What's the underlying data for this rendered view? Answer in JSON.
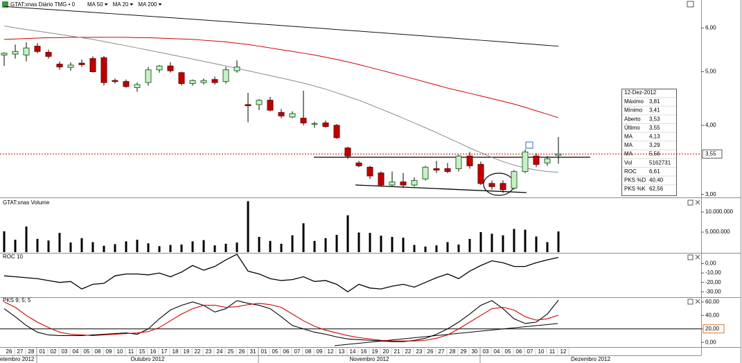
{
  "chart_data": [
    {
      "type": "candlestick",
      "title": "GTAT:xnas Diário TMG • 0",
      "log": true,
      "categories": [
        "26",
        "27",
        "28",
        "01",
        "02",
        "03",
        "04",
        "05",
        "08",
        "09",
        "10",
        "11",
        "15",
        "16",
        "17",
        "18",
        "19",
        "22",
        "23",
        "24",
        "25",
        "26",
        "31",
        "01",
        "05",
        "06",
        "07",
        "08",
        "09",
        "12",
        "13",
        "14",
        "16",
        "19",
        "20",
        "21",
        "22",
        "23",
        "26",
        "27",
        "28",
        "29",
        "30",
        "03",
        "04",
        "05",
        "06",
        "07",
        "10",
        "11",
        "12"
      ],
      "months": [
        "etembro 2012",
        "Outubro 2012",
        "Novembro 2012",
        "Dezembro 2012"
      ],
      "open": [
        5.36,
        5.38,
        5.36,
        5.56,
        5.42,
        5.16,
        5.09,
        5.18,
        5.28,
        5.3,
        4.82,
        4.8,
        4.68,
        4.78,
        5.04,
        5.12,
        4.98,
        4.76,
        4.78,
        4.84,
        4.8,
        5.02,
        4.36,
        4.36,
        4.44,
        4.22,
        4.14,
        4.12,
        4.02,
        4.04,
        4.0,
        3.64,
        3.42,
        3.36,
        3.28,
        3.12,
        3.16,
        3.12,
        3.2,
        3.34,
        3.34,
        3.34,
        3.52,
        3.4,
        3.14,
        3.14,
        3.08,
        3.3,
        3.52,
        3.42,
        3.53
      ],
      "high": [
        5.42,
        5.6,
        5.65,
        5.63,
        5.48,
        5.22,
        5.2,
        5.26,
        5.33,
        5.34,
        4.86,
        4.84,
        4.78,
        5.1,
        5.14,
        5.2,
        5.0,
        4.84,
        4.86,
        4.9,
        5.1,
        5.24,
        4.58,
        4.46,
        4.5,
        4.28,
        4.24,
        4.62,
        4.06,
        4.08,
        4.02,
        3.66,
        3.45,
        3.38,
        3.3,
        3.3,
        3.28,
        3.22,
        3.38,
        3.45,
        3.42,
        3.54,
        3.58,
        3.44,
        3.18,
        3.18,
        3.32,
        3.62,
        3.56,
        3.52,
        3.81
      ],
      "low": [
        5.12,
        5.28,
        5.22,
        5.4,
        5.28,
        5.04,
        5.02,
        5.1,
        4.98,
        4.72,
        4.76,
        4.68,
        4.6,
        4.72,
        4.98,
        4.98,
        4.72,
        4.72,
        4.74,
        4.74,
        4.76,
        4.98,
        4.05,
        4.26,
        4.24,
        4.12,
        4.12,
        4.0,
        3.96,
        3.96,
        3.78,
        3.48,
        3.36,
        3.2,
        3.1,
        3.1,
        3.08,
        3.1,
        3.18,
        3.28,
        3.28,
        3.3,
        3.34,
        3.12,
        3.06,
        3.02,
        3.06,
        3.28,
        3.36,
        3.38,
        3.41
      ],
      "close": [
        5.4,
        5.44,
        5.52,
        5.44,
        5.33,
        5.1,
        5.14,
        5.15,
        5.0,
        4.78,
        4.8,
        4.7,
        4.74,
        5.04,
        5.12,
        5.02,
        4.76,
        4.82,
        4.82,
        4.78,
        5.04,
        5.1,
        4.34,
        4.44,
        4.26,
        4.16,
        4.2,
        4.04,
        4.03,
        3.98,
        3.8,
        3.52,
        3.38,
        3.24,
        3.12,
        3.16,
        3.12,
        3.18,
        3.36,
        3.32,
        3.3,
        3.52,
        3.38,
        3.14,
        3.1,
        3.06,
        3.3,
        3.58,
        3.4,
        3.48,
        3.55
      ],
      "up_color": "#c8f0c8",
      "down_color": "#c00000",
      "series": [
        {
          "name": "MA 50",
          "color": "#cc0000",
          "values": [
            5.72,
            5.73,
            5.74,
            5.75,
            5.76,
            5.76,
            5.77,
            5.77,
            5.77,
            5.77,
            5.77,
            5.77,
            5.76,
            5.76,
            5.75,
            5.74,
            5.73,
            5.72,
            5.7,
            5.68,
            5.66,
            5.63,
            5.6,
            5.56,
            5.52,
            5.48,
            5.44,
            5.4,
            5.36,
            5.31,
            5.26,
            5.21,
            5.15,
            5.09,
            5.03,
            4.97,
            4.91,
            4.85,
            4.79,
            4.73,
            4.67,
            4.62,
            4.57,
            4.52,
            4.47,
            4.42,
            4.37,
            4.31,
            4.25,
            4.19,
            4.13
          ]
        },
        {
          "name": "MA 20",
          "color": "#8a8a8a",
          "values": [
            6.05,
            6.0,
            5.96,
            5.92,
            5.88,
            5.84,
            5.8,
            5.76,
            5.72,
            5.67,
            5.62,
            5.57,
            5.52,
            5.47,
            5.42,
            5.37,
            5.32,
            5.27,
            5.22,
            5.17,
            5.12,
            5.07,
            5.02,
            4.97,
            4.92,
            4.87,
            4.82,
            4.77,
            4.71,
            4.65,
            4.58,
            4.51,
            4.44,
            4.36,
            4.28,
            4.2,
            4.12,
            4.04,
            3.96,
            3.88,
            3.8,
            3.72,
            3.64,
            3.57,
            3.5,
            3.44,
            3.39,
            3.35,
            3.32,
            3.3,
            3.29
          ]
        },
        {
          "name": "MA 200",
          "color": "#111111",
          "values": [
            6.56,
            6.54,
            6.52,
            6.5,
            6.48,
            6.46,
            6.44,
            6.42,
            6.4,
            6.38,
            6.36,
            6.34,
            6.32,
            6.3,
            6.28,
            6.26,
            6.24,
            6.22,
            6.2,
            6.18,
            6.16,
            6.14,
            6.12,
            6.1,
            6.08,
            6.06,
            6.04,
            6.02,
            6.0,
            5.98,
            5.96,
            5.94,
            5.92,
            5.9,
            5.88,
            5.86,
            5.84,
            5.82,
            5.8,
            5.78,
            5.76,
            5.74,
            5.72,
            5.7,
            5.68,
            5.66,
            5.64,
            5.62,
            5.6,
            5.58,
            5.56
          ]
        }
      ],
      "last_price": {
        "value": 3.55,
        "label": "3,55"
      },
      "ylim": [
        2.98,
        6.7
      ],
      "yticks": [
        {
          "value": 3,
          "label": "3,00"
        },
        {
          "value": 4,
          "label": "4,00"
        },
        {
          "value": 5,
          "label": "5,00"
        },
        {
          "value": 6,
          "label": "6,00"
        }
      ]
    },
    {
      "type": "bar",
      "title": "GTAT:xnas Volume",
      "color": "#000000",
      "values": [
        5200000,
        3100000,
        6400000,
        3300000,
        2900000,
        4800000,
        2400000,
        3500000,
        2500000,
        1600000,
        2000000,
        2700000,
        3100000,
        2200000,
        1500000,
        1800000,
        1900000,
        2700000,
        3000000,
        1700000,
        2100000,
        2400000,
        12700000,
        3800000,
        2800000,
        2100000,
        4200000,
        7200000,
        2800000,
        3500000,
        4300000,
        9200000,
        4900000,
        4800000,
        4100000,
        3800000,
        3600000,
        1800000,
        1400000,
        1700000,
        2500000,
        1900000,
        3300000,
        5000000,
        4600000,
        4200000,
        5800000,
        5600000,
        3900000,
        2500000,
        5162731
      ],
      "ylim": [
        0,
        13300000
      ],
      "yticks": [
        {
          "value": 5000000,
          "label": "5.000.000"
        },
        {
          "value": 10000000,
          "label": "10.000.000"
        }
      ]
    },
    {
      "type": "line",
      "title": "ROC 10",
      "color": "#000000",
      "values": [
        -13,
        -14,
        -15,
        -16,
        -18,
        -20,
        -19,
        -27,
        -22,
        -21,
        -13,
        -11,
        -11,
        -12,
        -10,
        -14,
        -9,
        -2,
        -7,
        -3,
        4,
        10,
        -8,
        -11,
        -16,
        -18,
        -17,
        -14,
        -19,
        -18,
        -22,
        -30,
        -22,
        -26,
        -27,
        -24,
        -22,
        -25,
        -20,
        -15,
        -11,
        -16,
        -8,
        -2,
        3,
        1,
        -3,
        -3,
        1,
        4,
        6.61
      ],
      "ylim": [
        -35,
        10
      ],
      "yticks": [
        {
          "value": 0,
          "label": "0,00"
        },
        {
          "value": -10,
          "label": "-10,00"
        },
        {
          "value": -20,
          "label": "-20,00"
        },
        {
          "value": -30,
          "label": "-30,00"
        }
      ]
    },
    {
      "type": "line",
      "title": "PKS 9; 5; 5",
      "series": [
        {
          "color": "#000000",
          "values": [
            50,
            38,
            25,
            15,
            11,
            10,
            10,
            10,
            11,
            12,
            13,
            14,
            12,
            20,
            35,
            48,
            55,
            60,
            55,
            45,
            50,
            62,
            58,
            55,
            50,
            38,
            25,
            20,
            15,
            12,
            8,
            5,
            4,
            3,
            2,
            1,
            1,
            3,
            6,
            12,
            20,
            30,
            42,
            55,
            62,
            50,
            35,
            28,
            30,
            42,
            62.56
          ]
        },
        {
          "color": "#cc0000",
          "values": [
            60,
            52,
            40,
            30,
            22,
            15,
            12,
            11,
            10,
            11,
            12,
            13,
            14,
            16,
            22,
            32,
            42,
            50,
            55,
            55,
            52,
            53,
            56,
            58,
            56,
            52,
            42,
            32,
            24,
            18,
            14,
            10,
            7,
            5,
            3,
            2,
            2,
            2,
            3,
            6,
            11,
            20,
            30,
            40,
            50,
            52,
            48,
            38,
            33,
            35,
            40.4
          ]
        }
      ],
      "reference_line": 20,
      "ylim": [
        -6,
        65
      ],
      "yticks": [
        {
          "value": 60,
          "label": "60,00"
        },
        {
          "value": 40,
          "label": "40,00"
        },
        {
          "value": 20,
          "label": "20,00"
        },
        {
          "value": 0,
          "label": "0,00"
        }
      ]
    }
  ],
  "info_box": {
    "date": "12-Dez-2012",
    "rows": [
      {
        "label": "Máximo",
        "value": "3,81"
      },
      {
        "label": "Mínimo",
        "value": "3,41"
      },
      {
        "label": "Aberto",
        "value": "3,53"
      },
      {
        "label": "Último",
        "value": "3,55"
      },
      {
        "label": "MA",
        "value": "4,13",
        "color": "#cc0000"
      },
      {
        "label": "MA",
        "value": "3,29"
      },
      {
        "label": "MA",
        "value": "5,56"
      },
      {
        "label": "Vol",
        "value": "5162731"
      },
      {
        "label": "ROC",
        "value": "6,61"
      },
      {
        "label": "PKS %D",
        "value": "40,40",
        "color": "#cc0000"
      },
      {
        "label": "PKS %K",
        "value": "62,56"
      }
    ]
  }
}
